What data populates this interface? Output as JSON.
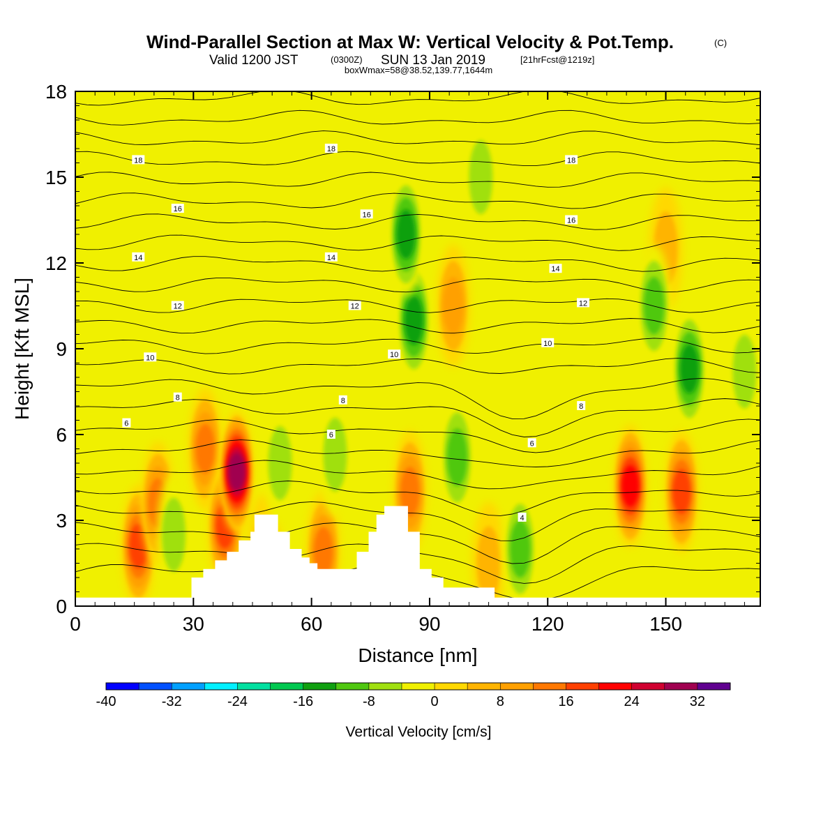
{
  "title": {
    "main": "Wind-Parallel Section at Max W: Vertical Velocity & Pot.Temp.",
    "main_suffix": "(C)",
    "line2_a": "Valid 1200 JST",
    "line2_b": "(0300Z)",
    "line2_c": "SUN 13 Jan 2019",
    "line2_d": "[21hrFcst@1219z]",
    "line3": "boxWmax=58@38.52,139.77,1644m"
  },
  "chart_data": {
    "type": "heatmap",
    "xlabel": "Distance [nm]",
    "ylabel": "Height [Kft MSL]",
    "xlim": [
      0,
      174
    ],
    "ylim": [
      0,
      18
    ],
    "x_ticks": [
      0,
      30,
      60,
      90,
      120,
      150
    ],
    "x_tick_labels": [
      "0",
      "30",
      "60",
      "90",
      "120",
      "150"
    ],
    "y_ticks": [
      0,
      3,
      6,
      9,
      12,
      15,
      18
    ],
    "y_tick_labels": [
      "0",
      "3",
      "6",
      "9",
      "12",
      "15",
      "18"
    ],
    "colorbar": {
      "title": "Vertical Velocity [cm/s]",
      "boundaries": [
        -40,
        -36,
        -32,
        -28,
        -24,
        -20,
        -16,
        -12,
        -8,
        -4,
        0,
        4,
        8,
        12,
        16,
        20,
        24,
        28,
        32,
        36
      ],
      "tick_values": [
        -40,
        -32,
        -24,
        -16,
        -8,
        0,
        8,
        16,
        24,
        32
      ],
      "tick_labels": [
        "-40",
        "-32",
        "-24",
        "-16",
        "-8",
        "0",
        "8",
        "16",
        "24",
        "32"
      ],
      "colors": [
        "#0000ff",
        "#0050ff",
        "#00a0ff",
        "#00f0ff",
        "#00e0a0",
        "#00c850",
        "#10a010",
        "#50c810",
        "#a0e010",
        "#f0f000",
        "#ffd800",
        "#ffb400",
        "#ffa000",
        "#ff7800",
        "#ff4000",
        "#ff0000",
        "#d00030",
        "#a00050",
        "#600090"
      ]
    },
    "velocity_features": [
      {
        "x": 16,
        "z": 2.1,
        "w": 20
      },
      {
        "x": 21,
        "z": 3.6,
        "w": 16
      },
      {
        "x": 33,
        "z": 5.5,
        "w": 18
      },
      {
        "x": 38,
        "z": 2.8,
        "w": 22
      },
      {
        "x": 41,
        "z": 4.7,
        "w": 34
      },
      {
        "x": 63,
        "z": 1.9,
        "w": 16
      },
      {
        "x": 85,
        "z": 4.0,
        "w": 18
      },
      {
        "x": 96,
        "z": 10.5,
        "w": 14
      },
      {
        "x": 141,
        "z": 4.2,
        "w": 26
      },
      {
        "x": 154,
        "z": 4.0,
        "w": 22
      },
      {
        "x": 48,
        "z": 1.8,
        "w": 8
      },
      {
        "x": 105,
        "z": 1.5,
        "w": 8
      },
      {
        "x": 150,
        "z": 12.5,
        "w": 8
      },
      {
        "x": 86,
        "z": 10.0,
        "w": -16
      },
      {
        "x": 84,
        "z": 13.0,
        "w": -16
      },
      {
        "x": 97,
        "z": 5.2,
        "w": -12
      },
      {
        "x": 113,
        "z": 2.0,
        "w": -12
      },
      {
        "x": 147,
        "z": 10.5,
        "w": -14
      },
      {
        "x": 156,
        "z": 8.3,
        "w": -16
      },
      {
        "x": 170,
        "z": 8.2,
        "w": -10
      },
      {
        "x": 52,
        "z": 5.0,
        "w": -8
      },
      {
        "x": 66,
        "z": 5.3,
        "w": -8
      },
      {
        "x": 25,
        "z": 2.5,
        "w": -8
      },
      {
        "x": 103,
        "z": 15.0,
        "w": -8
      }
    ],
    "theta_contours": {
      "labels": [
        {
          "value": "4",
          "x": 113.5,
          "z": 3.1
        },
        {
          "value": "6",
          "x": 13,
          "z": 6.4
        },
        {
          "value": "6",
          "x": 65,
          "z": 6.0
        },
        {
          "value": "6",
          "x": 116,
          "z": 5.7
        },
        {
          "value": "8",
          "x": 26,
          "z": 7.3
        },
        {
          "value": "8",
          "x": 68,
          "z": 7.2
        },
        {
          "value": "8",
          "x": 128.5,
          "z": 7.0
        },
        {
          "value": "10",
          "x": 19,
          "z": 8.7
        },
        {
          "value": "10",
          "x": 81,
          "z": 8.8
        },
        {
          "value": "10",
          "x": 120,
          "z": 9.2
        },
        {
          "value": "12",
          "x": 26,
          "z": 10.5
        },
        {
          "value": "12",
          "x": 71,
          "z": 10.5
        },
        {
          "value": "12",
          "x": 129,
          "z": 10.6
        },
        {
          "value": "14",
          "x": 16,
          "z": 12.2
        },
        {
          "value": "14",
          "x": 65,
          "z": 12.2
        },
        {
          "value": "14",
          "x": 122,
          "z": 11.8
        },
        {
          "value": "16",
          "x": 26,
          "z": 13.9
        },
        {
          "value": "16",
          "x": 74,
          "z": 13.7
        },
        {
          "value": "16",
          "x": 126,
          "z": 13.5
        },
        {
          "value": "18",
          "x": 16,
          "z": 15.6
        },
        {
          "value": "18",
          "x": 65,
          "z": 16.0
        },
        {
          "value": "18",
          "x": 126,
          "z": 15.6
        }
      ]
    },
    "terrain_height_kft": [
      {
        "x": 0,
        "z": 0.3
      },
      {
        "x": 29.5,
        "z": 0.3
      },
      {
        "x": 29.5,
        "z": 1.0
      },
      {
        "x": 32.5,
        "z": 1.0
      },
      {
        "x": 32.5,
        "z": 1.3
      },
      {
        "x": 35.5,
        "z": 1.3
      },
      {
        "x": 35.5,
        "z": 1.6
      },
      {
        "x": 38.5,
        "z": 1.6
      },
      {
        "x": 38.5,
        "z": 1.9
      },
      {
        "x": 41.5,
        "z": 1.9
      },
      {
        "x": 41.5,
        "z": 2.3
      },
      {
        "x": 44.5,
        "z": 2.3
      },
      {
        "x": 44.5,
        "z": 2.6
      },
      {
        "x": 45.5,
        "z": 2.6
      },
      {
        "x": 45.5,
        "z": 3.2
      },
      {
        "x": 51.5,
        "z": 3.2
      },
      {
        "x": 51.5,
        "z": 2.6
      },
      {
        "x": 54.5,
        "z": 2.6
      },
      {
        "x": 54.5,
        "z": 2.0
      },
      {
        "x": 57.5,
        "z": 2.0
      },
      {
        "x": 57.5,
        "z": 1.7
      },
      {
        "x": 59.5,
        "z": 1.7
      },
      {
        "x": 59.5,
        "z": 1.5
      },
      {
        "x": 61.5,
        "z": 1.5
      },
      {
        "x": 61.5,
        "z": 1.3
      },
      {
        "x": 71.5,
        "z": 1.3
      },
      {
        "x": 71.5,
        "z": 1.9
      },
      {
        "x": 74.5,
        "z": 1.9
      },
      {
        "x": 74.5,
        "z": 2.6
      },
      {
        "x": 76.5,
        "z": 2.6
      },
      {
        "x": 76.5,
        "z": 3.2
      },
      {
        "x": 78.5,
        "z": 3.2
      },
      {
        "x": 78.5,
        "z": 3.5
      },
      {
        "x": 84.5,
        "z": 3.5
      },
      {
        "x": 84.5,
        "z": 2.6
      },
      {
        "x": 87.5,
        "z": 2.6
      },
      {
        "x": 87.5,
        "z": 1.3
      },
      {
        "x": 90.5,
        "z": 1.3
      },
      {
        "x": 90.5,
        "z": 1.0
      },
      {
        "x": 93.5,
        "z": 1.0
      },
      {
        "x": 93.5,
        "z": 0.65
      },
      {
        "x": 106.5,
        "z": 0.65
      },
      {
        "x": 106.5,
        "z": 0.3
      },
      {
        "x": 174,
        "z": 0.3
      }
    ]
  }
}
